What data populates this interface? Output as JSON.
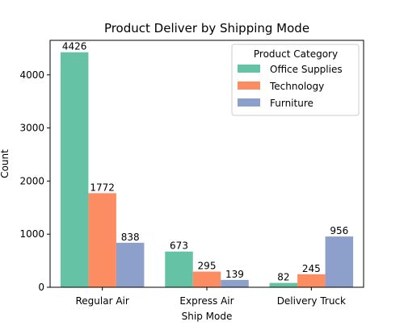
{
  "chart_data": {
    "type": "bar",
    "title": "Product Deliver by Shipping Mode",
    "xlabel": "Ship Mode",
    "ylabel": "Count",
    "categories": [
      "Regular Air",
      "Express Air",
      "Delivery Truck"
    ],
    "series": [
      {
        "name": "Office Supplies",
        "color": "#66c2a5",
        "values": [
          4426,
          673,
          82
        ]
      },
      {
        "name": "Technology",
        "color": "#fc8d62",
        "values": [
          1772,
          295,
          245
        ]
      },
      {
        "name": "Furniture",
        "color": "#8da0cb",
        "values": [
          838,
          139,
          956
        ]
      }
    ],
    "ylim": [
      0,
      4650
    ],
    "yticks": [
      0,
      1000,
      2000,
      3000,
      4000
    ],
    "grid": false,
    "legend": {
      "title": "Product Category",
      "position": "top-right"
    }
  }
}
